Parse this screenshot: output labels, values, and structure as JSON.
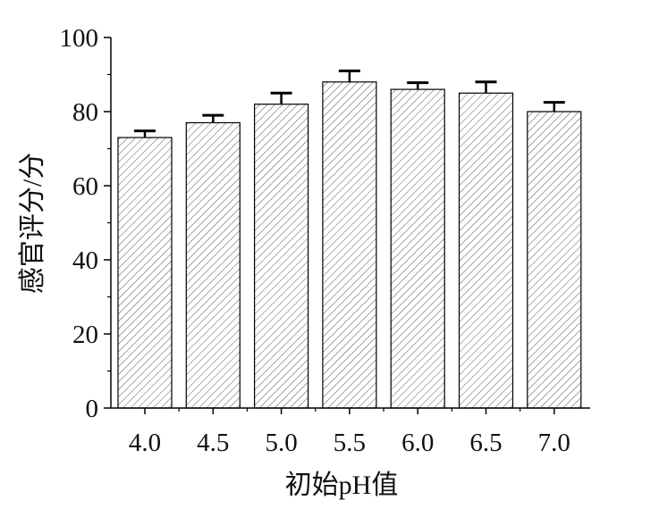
{
  "chart_data": {
    "type": "bar",
    "title": "",
    "xlabel": "初始pH值",
    "ylabel": "感官评分/分",
    "categories": [
      "4.0",
      "4.5",
      "5.0",
      "5.5",
      "6.0",
      "6.5",
      "7.0"
    ],
    "values": [
      73,
      77,
      82,
      88,
      86,
      85,
      80
    ],
    "error": [
      1.8,
      2.0,
      3.0,
      3.0,
      1.8,
      3.0,
      2.5
    ],
    "ylim": [
      0,
      100
    ],
    "yticks": [
      0,
      20,
      40,
      60,
      80,
      100
    ],
    "grid": false,
    "bar_pattern": "diagonal-hatch",
    "colors": {
      "bar_fill": "#ffffff",
      "hatch": "#555555",
      "axis": "#000000"
    }
  }
}
